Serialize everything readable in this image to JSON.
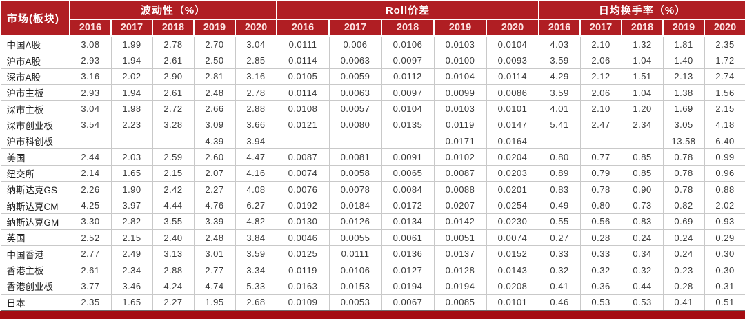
{
  "colors": {
    "header_red": "#b01e23",
    "year_text": "#ffe3e3",
    "bottom_bar": "#a50d12",
    "grid_line": "#c9c9c9"
  },
  "chart_data": {
    "type": "table",
    "row_header": "市场(板块)",
    "years": [
      "2016",
      "2017",
      "2018",
      "2019",
      "2020"
    ],
    "groups": [
      {
        "label": "波动性（%）",
        "key": "volatility"
      },
      {
        "label": "Roll价差",
        "key": "roll"
      },
      {
        "label": "日均换手率（%）",
        "key": "turnover"
      }
    ],
    "rows": [
      {
        "market": "中国A股",
        "volatility": [
          "3.08",
          "1.99",
          "2.78",
          "2.70",
          "3.04"
        ],
        "roll": [
          "0.0111",
          "0.006",
          "0.0106",
          "0.0103",
          "0.0104"
        ],
        "turnover": [
          "4.03",
          "2.10",
          "1.32",
          "1.81",
          "2.35"
        ]
      },
      {
        "market": "沪市A股",
        "volatility": [
          "2.93",
          "1.94",
          "2.61",
          "2.50",
          "2.85"
        ],
        "roll": [
          "0.0114",
          "0.0063",
          "0.0097",
          "0.0100",
          "0.0093"
        ],
        "turnover": [
          "3.59",
          "2.06",
          "1.04",
          "1.40",
          "1.72"
        ]
      },
      {
        "market": "深市A股",
        "volatility": [
          "3.16",
          "2.02",
          "2.90",
          "2.81",
          "3.16"
        ],
        "roll": [
          "0.0105",
          "0.0059",
          "0.0112",
          "0.0104",
          "0.0114"
        ],
        "turnover": [
          "4.29",
          "2.12",
          "1.51",
          "2.13",
          "2.74"
        ]
      },
      {
        "market": "沪市主板",
        "volatility": [
          "2.93",
          "1.94",
          "2.61",
          "2.48",
          "2.78"
        ],
        "roll": [
          "0.0114",
          "0.0063",
          "0.0097",
          "0.0099",
          "0.0086"
        ],
        "turnover": [
          "3.59",
          "2.06",
          "1.04",
          "1.38",
          "1.56"
        ]
      },
      {
        "market": "深市主板",
        "volatility": [
          "3.04",
          "1.98",
          "2.72",
          "2.66",
          "2.88"
        ],
        "roll": [
          "0.0108",
          "0.0057",
          "0.0104",
          "0.0103",
          "0.0101"
        ],
        "turnover": [
          "4.01",
          "2.10",
          "1.20",
          "1.69",
          "2.15"
        ]
      },
      {
        "market": "深市创业板",
        "volatility": [
          "3.54",
          "2.23",
          "3.28",
          "3.09",
          "3.66"
        ],
        "roll": [
          "0.0121",
          "0.0080",
          "0.0135",
          "0.0119",
          "0.0147"
        ],
        "turnover": [
          "5.41",
          "2.47",
          "2.34",
          "3.05",
          "4.18"
        ]
      },
      {
        "market": "沪市科创板",
        "volatility": [
          "—",
          "—",
          "—",
          "4.39",
          "3.94"
        ],
        "roll": [
          "—",
          "—",
          "—",
          "0.0171",
          "0.0164"
        ],
        "turnover": [
          "—",
          "—",
          "—",
          "13.58",
          "6.40"
        ]
      },
      {
        "market": "美国",
        "volatility": [
          "2.44",
          "2.03",
          "2.59",
          "2.60",
          "4.47"
        ],
        "roll": [
          "0.0087",
          "0.0081",
          "0.0091",
          "0.0102",
          "0.0204"
        ],
        "turnover": [
          "0.80",
          "0.77",
          "0.85",
          "0.78",
          "0.99"
        ]
      },
      {
        "market": "纽交所",
        "volatility": [
          "2.14",
          "1.65",
          "2.15",
          "2.07",
          "4.16"
        ],
        "roll": [
          "0.0074",
          "0.0058",
          "0.0065",
          "0.0087",
          "0.0203"
        ],
        "turnover": [
          "0.89",
          "0.79",
          "0.85",
          "0.78",
          "0.96"
        ]
      },
      {
        "market": "纳斯达克GS",
        "volatility": [
          "2.26",
          "1.90",
          "2.42",
          "2.27",
          "4.08"
        ],
        "roll": [
          "0.0076",
          "0.0078",
          "0.0084",
          "0.0088",
          "0.0201"
        ],
        "turnover": [
          "0.83",
          "0.78",
          "0.90",
          "0.78",
          "0.88"
        ]
      },
      {
        "market": "纳斯达克CM",
        "volatility": [
          "4.25",
          "3.97",
          "4.44",
          "4.76",
          "6.27"
        ],
        "roll": [
          "0.0192",
          "0.0184",
          "0.0172",
          "0.0207",
          "0.0254"
        ],
        "turnover": [
          "0.49",
          "0.80",
          "0.73",
          "0.82",
          "2.02"
        ]
      },
      {
        "market": "纳斯达克GM",
        "volatility": [
          "3.30",
          "2.82",
          "3.55",
          "3.39",
          "4.82"
        ],
        "roll": [
          "0.0130",
          "0.0126",
          "0.0134",
          "0.0142",
          "0.0230"
        ],
        "turnover": [
          "0.55",
          "0.56",
          "0.83",
          "0.69",
          "0.93"
        ]
      },
      {
        "market": "英国",
        "volatility": [
          "2.52",
          "2.15",
          "2.40",
          "2.48",
          "3.84"
        ],
        "roll": [
          "0.0046",
          "0.0055",
          "0.0061",
          "0.0051",
          "0.0074"
        ],
        "turnover": [
          "0.27",
          "0.28",
          "0.24",
          "0.24",
          "0.29"
        ]
      },
      {
        "market": "中国香港",
        "volatility": [
          "2.77",
          "2.49",
          "3.13",
          "3.01",
          "3.59"
        ],
        "roll": [
          "0.0125",
          "0.0111",
          "0.0136",
          "0.0137",
          "0.0152"
        ],
        "turnover": [
          "0.33",
          "0.33",
          "0.34",
          "0.24",
          "0.30"
        ]
      },
      {
        "market": "香港主板",
        "volatility": [
          "2.61",
          "2.34",
          "2.88",
          "2.77",
          "3.34"
        ],
        "roll": [
          "0.0119",
          "0.0106",
          "0.0127",
          "0.0128",
          "0.0143"
        ],
        "turnover": [
          "0.32",
          "0.32",
          "0.32",
          "0.23",
          "0.30"
        ]
      },
      {
        "market": "香港创业板",
        "volatility": [
          "3.77",
          "3.46",
          "4.24",
          "4.74",
          "5.33"
        ],
        "roll": [
          "0.0163",
          "0.0153",
          "0.0194",
          "0.0194",
          "0.0208"
        ],
        "turnover": [
          "0.41",
          "0.36",
          "0.44",
          "0.28",
          "0.31"
        ]
      },
      {
        "market": "日本",
        "volatility": [
          "2.35",
          "1.65",
          "2.27",
          "1.95",
          "2.68"
        ],
        "roll": [
          "0.0109",
          "0.0053",
          "0.0067",
          "0.0085",
          "0.0101"
        ],
        "turnover": [
          "0.46",
          "0.53",
          "0.53",
          "0.41",
          "0.51"
        ]
      }
    ]
  }
}
